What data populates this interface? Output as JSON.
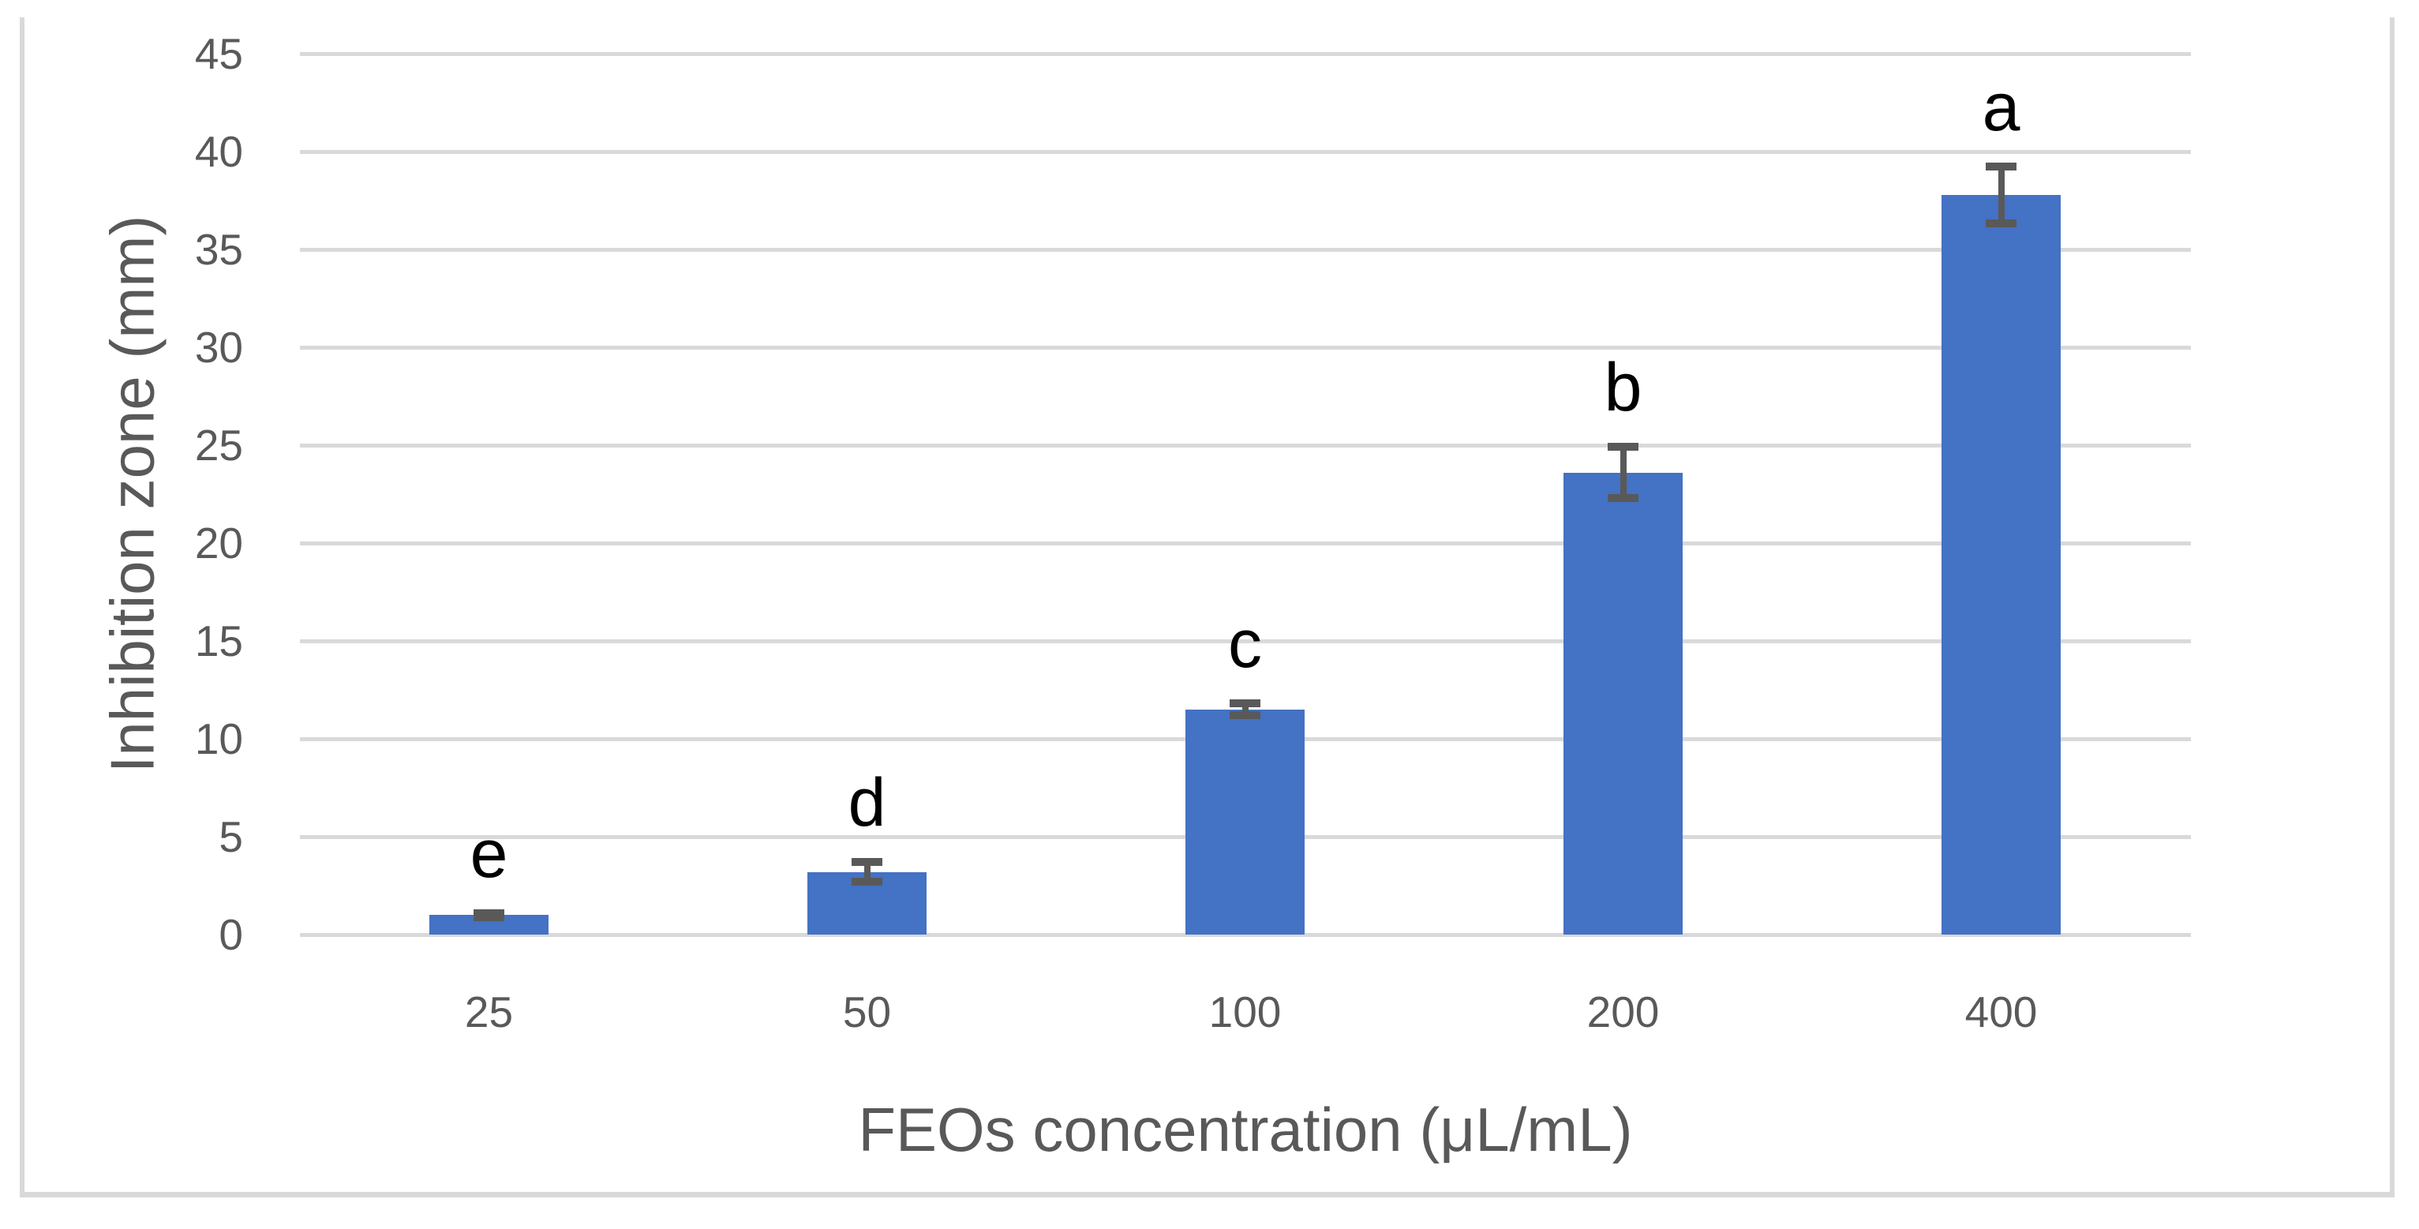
{
  "chart_data": {
    "type": "bar",
    "title": "",
    "xlabel": "FEOs concentration (μL/mL)",
    "ylabel": "Inhibition zone (mm)",
    "categories": [
      "25",
      "50",
      "100",
      "200",
      "400"
    ],
    "values": [
      1.0,
      3.2,
      11.5,
      23.6,
      37.8
    ],
    "error_bars": [
      0.1,
      0.5,
      0.3,
      1.3,
      1.45
    ],
    "significance_letters": [
      "e",
      "d",
      "c",
      "b",
      "a"
    ],
    "yticks": [
      0,
      5,
      10,
      15,
      20,
      25,
      30,
      35,
      40,
      45
    ],
    "ylim": [
      0,
      45
    ],
    "grid": "horizontal",
    "legend": "none",
    "colors": {
      "bar": "#4472C4",
      "error_bar": "#595959",
      "gridline": "#d9d9d9",
      "tick_label": "#595959",
      "axis_title": "#595959",
      "letter_label": "#000000",
      "figure_border": "#d9d9d9",
      "background": "#ffffff"
    }
  }
}
